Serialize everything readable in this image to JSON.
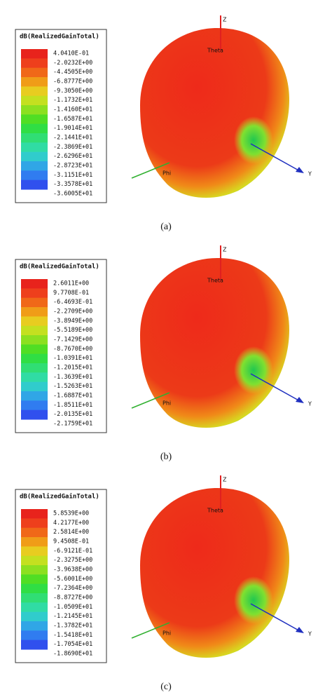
{
  "panels": [
    {
      "caption": "(a)",
      "legend_title": "dB(RealizedGainTotal)",
      "legend_values": [
        "4.0410E-01",
        "-2.0232E+00",
        "-4.4505E+00",
        "-6.8777E+00",
        "-9.3050E+00",
        "-1.1732E+01",
        "-1.4160E+01",
        "-1.6587E+01",
        "-1.9014E+01",
        "-2.1441E+01",
        "-2.3869E+01",
        "-2.6296E+01",
        "-2.8723E+01",
        "-3.1151E+01",
        "-3.3578E+01",
        "-3.6005E+01"
      ],
      "axes": {
        "z": "Z",
        "theta": "Theta",
        "y": "Y",
        "phi": "Phi"
      }
    },
    {
      "caption": "(b)",
      "legend_title": "dB(RealizedGainTotal)",
      "legend_values": [
        "2.6011E+00",
        "9.7708E-01",
        "-6.4693E-01",
        "-2.2709E+00",
        "-3.8949E+00",
        "-5.5189E+00",
        "-7.1429E+00",
        "-8.7670E+00",
        "-1.0391E+01",
        "-1.2015E+01",
        "-1.3639E+01",
        "-1.5263E+01",
        "-1.6887E+01",
        "-1.8511E+01",
        "-2.0135E+01",
        "-2.1759E+01"
      ],
      "axes": {
        "z": "Z",
        "theta": "Theta",
        "y": "Y",
        "phi": "Phi"
      }
    },
    {
      "caption": "(c)",
      "legend_title": "dB(RealizedGainTotal)",
      "legend_values": [
        "5.8539E+00",
        "4.2177E+00",
        "2.5814E+00",
        "9.4508E-01",
        "-6.9121E-01",
        "-2.3275E+00",
        "-3.9638E+00",
        "-5.6001E+00",
        "-7.2364E+00",
        "-8.8727E+00",
        "-1.0509E+01",
        "-1.2145E+01",
        "-1.3782E+01",
        "-1.5418E+01",
        "-1.7054E+01",
        "-1.8690E+01"
      ],
      "axes": {
        "z": "Z",
        "theta": "Theta",
        "y": "Y",
        "phi": "Phi"
      }
    }
  ]
}
